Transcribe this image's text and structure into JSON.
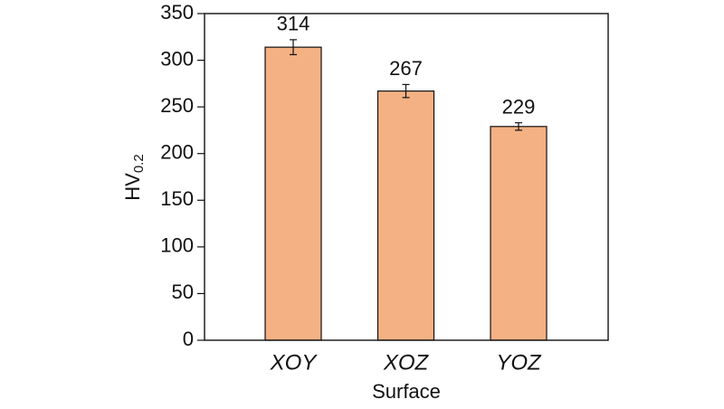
{
  "chart_data": {
    "type": "bar",
    "y_label": "HV",
    "y_label_sub": "0.2",
    "x_label": "Surface",
    "categories": [
      "XOY",
      "XOZ",
      "YOZ"
    ],
    "values": [
      314,
      267,
      229
    ],
    "errors": [
      8,
      7,
      4
    ],
    "color": "#f4b183",
    "ylim": [
      0,
      350
    ],
    "yticks": [
      0,
      50,
      100,
      150,
      200,
      250,
      300,
      350
    ]
  }
}
